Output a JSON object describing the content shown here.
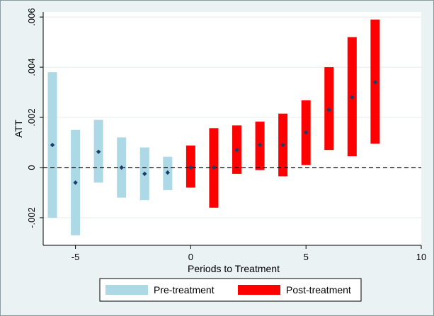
{
  "chart_data": {
    "type": "bar",
    "subtype": "range-with-point-estimates",
    "xlabel": "Periods to Treatment",
    "ylabel": "ATT",
    "xlim": [
      -6.4,
      10
    ],
    "ylim": [
      -0.0031,
      0.0062
    ],
    "x_ticks": [
      -5,
      0,
      5,
      10
    ],
    "x_tick_labels": [
      "-5",
      "0",
      "5",
      "10"
    ],
    "y_ticks": [
      -0.002,
      0,
      0.002,
      0.004,
      0.006
    ],
    "y_tick_labels": [
      "-.002",
      "0",
      ".002",
      ".004",
      ".006"
    ],
    "grid": true,
    "reference_line": {
      "y": 0,
      "style": "dashed"
    },
    "legend_position": "bottom",
    "series": [
      {
        "name": "Pre-treatment",
        "color": "#add8e6",
        "points": [
          {
            "x": -6,
            "lower": -0.002,
            "upper": 0.0038,
            "estimate": 0.0009
          },
          {
            "x": -5,
            "lower": -0.0027,
            "upper": 0.0015,
            "estimate": -0.0006
          },
          {
            "x": -4,
            "lower": -0.0006,
            "upper": 0.0019,
            "estimate": 0.00063
          },
          {
            "x": -3,
            "lower": -0.0012,
            "upper": 0.0012,
            "estimate": 0.0
          },
          {
            "x": -2,
            "lower": -0.0013,
            "upper": 0.0008,
            "estimate": -0.00025
          },
          {
            "x": -1,
            "lower": -0.0009,
            "upper": 0.00043,
            "estimate": -0.0002
          }
        ]
      },
      {
        "name": "Post-treatment",
        "color": "#ff0000",
        "points": [
          {
            "x": 0,
            "lower": -0.0008,
            "upper": 0.00088,
            "estimate": 0.0
          },
          {
            "x": 1,
            "lower": -0.0016,
            "upper": 0.00157,
            "estimate": 0.0
          },
          {
            "x": 2,
            "lower": -0.00025,
            "upper": 0.00168,
            "estimate": 0.0007
          },
          {
            "x": 3,
            "lower": -0.0001,
            "upper": 0.00183,
            "estimate": 0.0009
          },
          {
            "x": 4,
            "lower": -0.00035,
            "upper": 0.00215,
            "estimate": 0.0009
          },
          {
            "x": 5,
            "lower": 0.0001,
            "upper": 0.00268,
            "estimate": 0.0014
          },
          {
            "x": 6,
            "lower": 0.0007,
            "upper": 0.004,
            "estimate": 0.0023
          },
          {
            "x": 7,
            "lower": 0.00045,
            "upper": 0.0052,
            "estimate": 0.0028
          },
          {
            "x": 8,
            "lower": 0.00095,
            "upper": 0.0059,
            "estimate": 0.0034
          }
        ]
      }
    ],
    "estimate_marker_color": "#1a3e6b"
  }
}
